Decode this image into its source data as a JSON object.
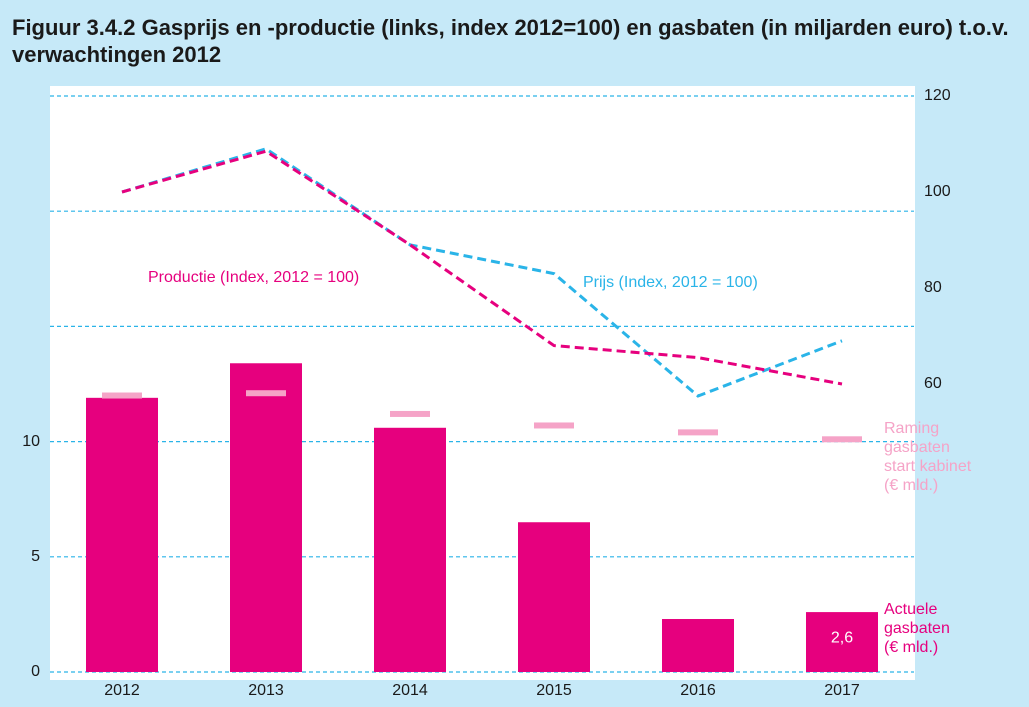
{
  "chart_data": {
    "type": "combo",
    "title": "Figuur 3.4.2 Gasprijs en -productie (links, index 2012=100) en gasbaten (in miljarden euro) t.o.v. verwachtingen 2012",
    "categories": [
      "2012",
      "2013",
      "2014",
      "2015",
      "2016",
      "2017"
    ],
    "ylim": [
      0,
      25
    ],
    "yticks": [
      0,
      5,
      10
    ],
    "ygrid": [
      0,
      5,
      10,
      15,
      20,
      25
    ],
    "y2lim": [
      0,
      120
    ],
    "y2ticks": [
      60,
      80,
      100,
      120
    ],
    "grid": true,
    "series": [
      {
        "name": [
          "Actuele",
          "gasbaten",
          "(€ mld.)"
        ],
        "type": "bar",
        "color": "#e6007e",
        "values": [
          11.9,
          13.4,
          10.6,
          6.5,
          2.3,
          2.6
        ],
        "value_labels": [
          null,
          null,
          null,
          null,
          null,
          "2,6"
        ]
      },
      {
        "name": [
          "Raming",
          "gasbaten",
          "start kabinet",
          "(€ mld.)"
        ],
        "type": "marker",
        "color": "#f5a3c7",
        "values": [
          12.0,
          12.1,
          11.2,
          10.7,
          10.4,
          10.1
        ]
      },
      {
        "name": [
          "Prijs (Index, 2012 = 100)"
        ],
        "type": "line",
        "axis": "y2",
        "color": "#2ab4e8",
        "values": [
          100,
          109,
          89,
          83,
          57.5,
          69
        ]
      },
      {
        "name": [
          "Productie (Index, 2012 = 100)"
        ],
        "type": "line",
        "axis": "y2",
        "color": "#e6007e",
        "values": [
          100,
          108.5,
          89,
          68,
          65.5,
          60
        ]
      }
    ]
  }
}
